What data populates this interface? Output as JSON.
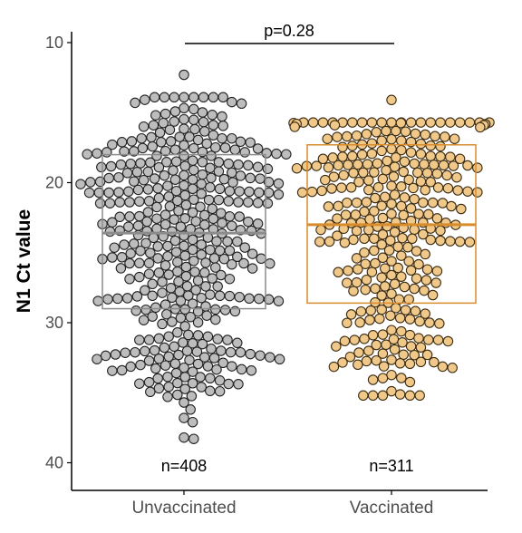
{
  "chart_data": {
    "type": "scatter",
    "subtype": "beeswarm with boxplot",
    "ylabel": "N1 Ct value",
    "ylim": [
      10,
      42
    ],
    "y_reversed": true,
    "yticks": [
      "10",
      "20",
      "30",
      "40"
    ],
    "categories": [
      "Unvaccinated",
      "Vaccinated"
    ],
    "series": [
      {
        "category": "Unvaccinated",
        "n": 408,
        "n_label": "n=408",
        "color": "#bdbdbd",
        "box_color": "#8c8c8c",
        "median": 23.6,
        "q1": 18.0,
        "q3": 29.0,
        "min": 12.3,
        "max": 38.3,
        "outliers": [
          36.2,
          37.1,
          38.2,
          38.3
        ]
      },
      {
        "category": "Vaccinated",
        "n": 311,
        "n_label": "n=311",
        "color": "#f0c98a",
        "box_color": "#d98c2b",
        "median": 23.0,
        "q1": 17.3,
        "q3": 28.6,
        "min": 14.1,
        "max": 36.7,
        "outliers": []
      }
    ],
    "annotation": {
      "text": "p=0.28"
    }
  }
}
